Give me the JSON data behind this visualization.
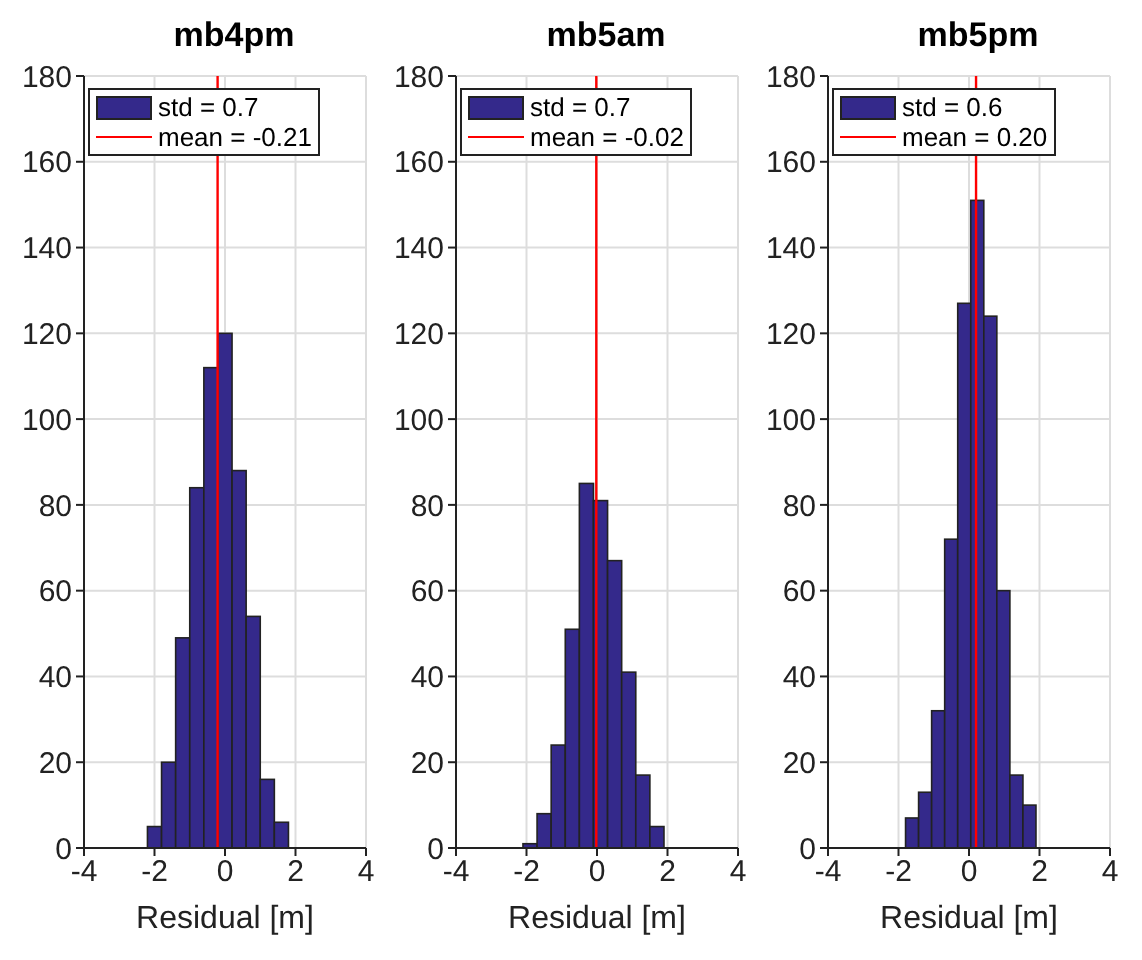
{
  "chart_data": [
    {
      "type": "histogram",
      "title": "mb4pm",
      "xlabel": "Residual [m]",
      "bins": [
        -2.2,
        -1.8,
        -1.4,
        -1.0,
        -0.6,
        -0.2,
        0.2,
        0.6,
        1.0,
        1.4,
        1.8
      ],
      "series": [
        {
          "name": "std = 0.7",
          "color": "#34298b",
          "values": [
            5,
            20,
            49,
            84,
            112,
            120,
            88,
            54,
            16,
            6
          ]
        }
      ],
      "ref_lines": [
        {
          "axis": "x",
          "value": -0.21,
          "label": "mean = -0.21",
          "color": "#ff0000"
        }
      ],
      "xlim": [
        -4,
        4
      ],
      "xticks": [
        -4,
        -2,
        0,
        2,
        4
      ],
      "ylim": [
        0,
        180
      ],
      "yticks": [
        0,
        20,
        40,
        60,
        80,
        100,
        120,
        140,
        160,
        180
      ],
      "grid": true,
      "legend": "top left"
    },
    {
      "type": "histogram",
      "title": "mb5am",
      "xlabel": "Residual [m]",
      "bins": [
        -2.1,
        -1.7,
        -1.3,
        -0.9,
        -0.5,
        -0.1,
        0.3,
        0.7,
        1.1,
        1.5,
        1.9
      ],
      "series": [
        {
          "name": "std = 0.7",
          "color": "#34298b",
          "values": [
            1,
            8,
            24,
            51,
            85,
            81,
            67,
            41,
            17,
            5
          ]
        }
      ],
      "ref_lines": [
        {
          "axis": "x",
          "value": -0.02,
          "label": "mean = -0.02",
          "color": "#ff0000"
        }
      ],
      "xlim": [
        -4,
        4
      ],
      "xticks": [
        -4,
        -2,
        0,
        2,
        4
      ],
      "ylim": [
        0,
        180
      ],
      "yticks": [
        0,
        20,
        40,
        60,
        80,
        100,
        120,
        140,
        160,
        180
      ],
      "grid": true,
      "legend": "top left"
    },
    {
      "type": "histogram",
      "title": "mb5pm",
      "xlabel": "Residual [m]",
      "bins": [
        -1.8,
        -1.43,
        -1.06,
        -0.69,
        -0.32,
        0.05,
        0.42,
        0.79,
        1.16,
        1.53,
        1.9
      ],
      "series": [
        {
          "name": "std = 0.6",
          "color": "#34298b",
          "values": [
            7,
            13,
            32,
            72,
            127,
            151,
            124,
            60,
            17,
            10
          ]
        }
      ],
      "ref_lines": [
        {
          "axis": "x",
          "value": 0.2,
          "label": "mean = 0.20",
          "color": "#ff0000"
        }
      ],
      "xlim": [
        -4,
        4
      ],
      "xticks": [
        -4,
        -2,
        0,
        2,
        4
      ],
      "ylim": [
        0,
        180
      ],
      "yticks": [
        0,
        20,
        40,
        60,
        80,
        100,
        120,
        140,
        160,
        180
      ],
      "grid": true,
      "legend": "top left"
    }
  ]
}
